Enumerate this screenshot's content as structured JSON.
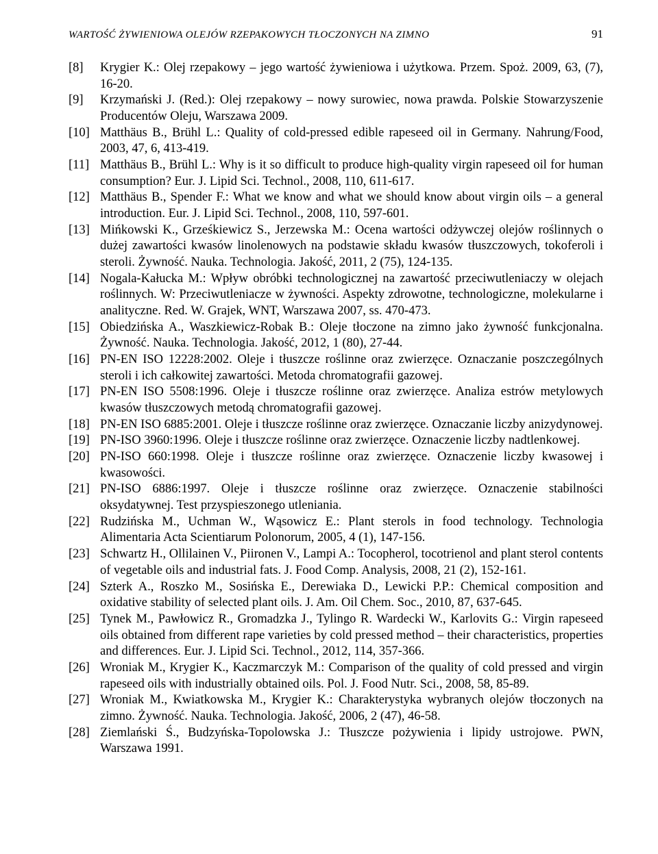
{
  "running_title": "WARTOŚĆ ŻYWIENIOWA OLEJÓW RZEPAKOWYCH TŁOCZONYCH NA ZIMNO",
  "page_number": "91",
  "refs": [
    {
      "num": "[8]",
      "text": "Krygier K.: Olej rzepakowy – jego wartość żywieniowa i użytkowa. Przem. Spoż. 2009, 63, (7), 16-20."
    },
    {
      "num": "[9]",
      "text": "Krzymański J. (Red.): Olej rzepakowy – nowy surowiec, nowa prawda. Polskie Stowarzyszenie Producentów Oleju, Warszawa 2009."
    },
    {
      "num": "[10]",
      "text": "Matthäus B., Brühl L.: Quality of cold-pressed edible rapeseed oil in Germany. Nahrung/Food, 2003, 47, 6, 413-419."
    },
    {
      "num": "[11]",
      "text": "Matthäus B., Brühl L.: Why is it so difficult to produce high-quality virgin rapeseed oil for human consumption? Eur. J. Lipid Sci. Technol., 2008, 110, 611-617."
    },
    {
      "num": "[12]",
      "text": "Matthäus B., Spender F.: What we know and what we should know about virgin oils – a general introduction. Eur. J. Lipid Sci. Technol., 2008, 110, 597-601."
    },
    {
      "num": "[13]",
      "text": "Mińkowski K., Grześkiewicz S., Jerzewska M.: Ocena wartości odżywczej olejów roślinnych o dużej zawartości kwasów linolenowych na podstawie składu kwasów tłuszczowych, tokoferoli i steroli. Żywność. Nauka. Technologia. Jakość, 2011, 2 (75), 124-135."
    },
    {
      "num": "[14]",
      "text": "Nogala-Kałucka M.: Wpływ obróbki technologicznej na zawartość przeciwutleniaczy w olejach roślinnych. W: Przeciwutleniacze w żywności. Aspekty zdrowotne, technologiczne, molekularne i analityczne. Red. W. Grajek, WNT, Warszawa 2007, ss. 470-473."
    },
    {
      "num": "[15]",
      "text": "Obiedzińska A., Waszkiewicz-Robak B.: Oleje tłoczone na zimno jako żywność funkcjonalna. Żywność. Nauka. Technologia. Jakość, 2012, 1 (80), 27-44."
    },
    {
      "num": "[16]",
      "text": "PN-EN ISO 12228:2002. Oleje i tłuszcze roślinne oraz zwierzęce. Oznaczanie poszczególnych steroli i ich całkowitej zawartości. Metoda chromatografii gazowej."
    },
    {
      "num": "[17]",
      "text": "PN-EN ISO 5508:1996. Oleje i tłuszcze roślinne oraz zwierzęce. Analiza estrów metylowych kwasów tłuszczowych metodą chromatografii gazowej."
    },
    {
      "num": "[18]",
      "text": "PN-EN ISO 6885:2001. Oleje i tłuszcze roślinne oraz zwierzęce. Oznaczanie liczby anizydynowej."
    },
    {
      "num": "[19]",
      "text": "PN-ISO 3960:1996. Oleje i tłuszcze roślinne oraz zwierzęce. Oznaczenie liczby nadtlenkowej."
    },
    {
      "num": "[20]",
      "text": "PN-ISO 660:1998. Oleje i tłuszcze roślinne oraz zwierzęce. Oznaczenie liczby kwasowej i kwasowości."
    },
    {
      "num": "[21]",
      "text": "PN-ISO 6886:1997. Oleje i tłuszcze roślinne oraz zwierzęce. Oznaczenie stabilności oksydatywnej. Test przyspieszonego utleniania."
    },
    {
      "num": "[22]",
      "text": "Rudzińska M., Uchman W., Wąsowicz E.: Plant sterols in food technology. Technologia Alimentaria Acta Scientiarum Polonorum, 2005, 4 (1), 147-156."
    },
    {
      "num": "[23]",
      "text": "Schwartz H., Ollilainen V., Piironen V., Lampi A.: Tocopherol, tocotrienol and plant sterol contents of vegetable oils and industrial fats. J. Food Comp. Analysis, 2008, 21 (2), 152-161."
    },
    {
      "num": "[24]",
      "text": "Szterk A., Roszko M., Sosińska E., Derewiaka D., Lewicki P.P.: Chemical composition and oxidative stability of selected plant oils. J. Am. Oil Chem. Soc., 2010, 87, 637-645."
    },
    {
      "num": "[25]",
      "text": "Tynek M., Pawłowicz R., Gromadzka J., Tylingo R. Wardecki W., Karlovits G.: Virgin rapeseed oils obtained from different rape varieties by cold pressed method – their characteristics, properties and differences. Eur. J. Lipid Sci. Technol., 2012, 114, 357-366."
    },
    {
      "num": "[26]",
      "text": "Wroniak M., Krygier K., Kaczmarczyk M.: Comparison of the quality of cold pressed and virgin rapeseed oils with industrially obtained oils. Pol. J. Food Nutr. Sci., 2008, 58, 85-89."
    },
    {
      "num": "[27]",
      "text": "Wroniak M., Kwiatkowska M., Krygier K.: Charakterystyka wybranych olejów tłoczonych na zimno. Żywność. Nauka. Technologia. Jakość, 2006, 2 (47), 46-58."
    },
    {
      "num": "[28]",
      "text": "Ziemlański Ś., Budzyńska-Topolowska J.: Tłuszcze pożywienia i lipidy ustrojowe. PWN, Warszawa 1991."
    }
  ]
}
